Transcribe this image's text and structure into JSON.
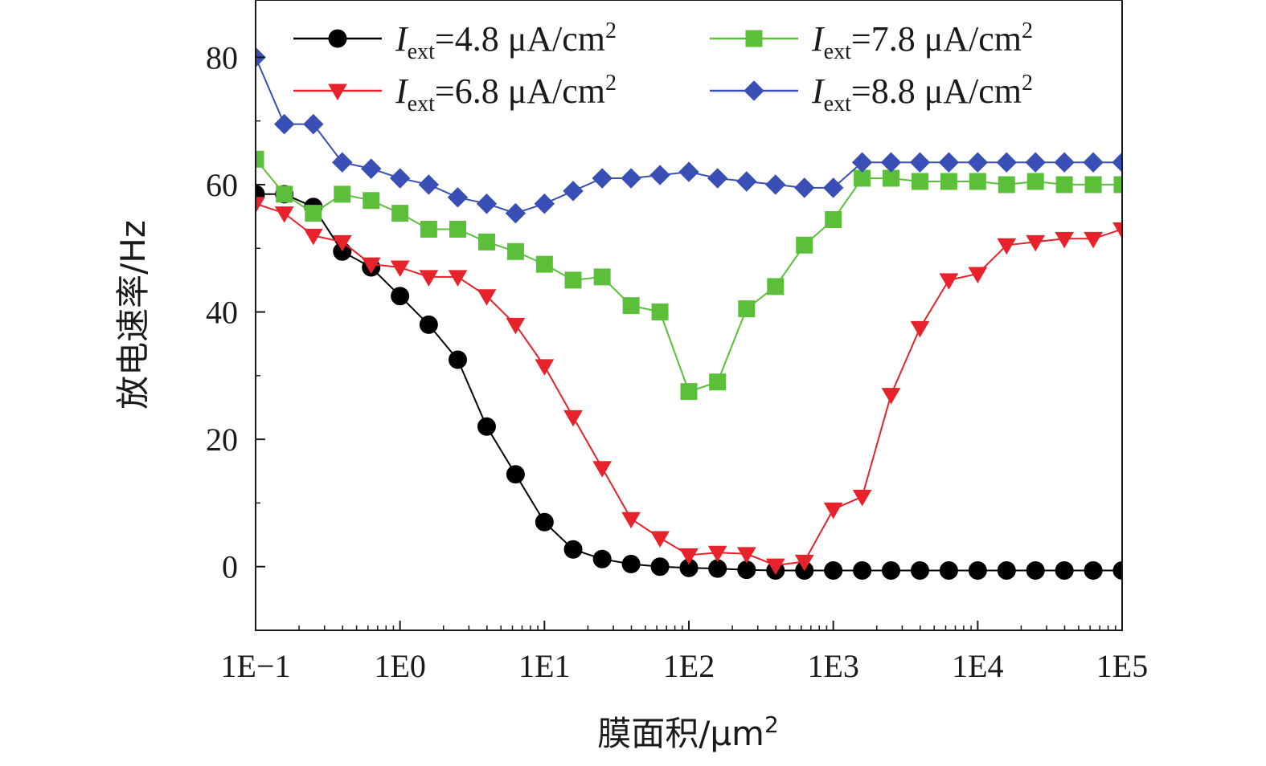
{
  "chart_data": {
    "type": "line",
    "xscale": "log",
    "x_tick_labels": [
      "1E−1",
      "1E0",
      "1E1",
      "1E2",
      "1E3",
      "1E4",
      "1E5"
    ],
    "y_tick_labels": [
      "0",
      "20",
      "40",
      "60",
      "80"
    ],
    "xlim": [
      0.1,
      100000
    ],
    "ylim": [
      -10,
      89
    ],
    "xlabel": "膜面积/μm",
    "xlabel_sup": "2",
    "ylabel": "放电速率/Hz",
    "legend_position": "top",
    "grid": false,
    "x": [
      0.1,
      0.158,
      0.251,
      0.398,
      0.631,
      1,
      1.58,
      2.51,
      3.98,
      6.31,
      10,
      15.8,
      25.1,
      39.8,
      63.1,
      100,
      158,
      251,
      398,
      631,
      1000,
      1585,
      2512,
      3981,
      6310,
      10000,
      15849,
      25119,
      39811,
      63096,
      100000
    ],
    "series": [
      {
        "name_main": "I",
        "name_sub": "ext",
        "name_rest": "=4.8 μA/cm",
        "name_sup": "2",
        "color": "#000000",
        "marker": "circle",
        "values": [
          58.5,
          58.5,
          56.5,
          49.5,
          47,
          42.5,
          38,
          32.5,
          22,
          14.5,
          7,
          2.7,
          1.2,
          0.4,
          0,
          -0.2,
          -0.3,
          -0.5,
          -0.6,
          -0.6,
          -0.6,
          -0.6,
          -0.6,
          -0.6,
          -0.6,
          -0.6,
          -0.6,
          -0.6,
          -0.6,
          -0.6,
          -0.6
        ]
      },
      {
        "name_main": "I",
        "name_sub": "ext",
        "name_rest": "=6.8 μA/cm",
        "name_sup": "2",
        "color": "#e8222b",
        "marker": "triangle-down",
        "values": [
          57,
          55.5,
          52,
          51,
          47.5,
          47,
          45.5,
          45.5,
          42.5,
          38,
          31.5,
          23.5,
          15.5,
          7.5,
          4.5,
          1.8,
          2.2,
          2,
          0.2,
          0.8,
          9,
          11,
          27,
          37.5,
          45,
          46,
          50.5,
          51,
          51.5,
          51.5,
          53
        ]
      },
      {
        "name_main": "I",
        "name_sub": "ext",
        "name_rest": "=7.8 μA/cm",
        "name_sup": "2",
        "color": "#5cbf3a",
        "marker": "square",
        "values": [
          64,
          58.5,
          55.5,
          58.5,
          57.5,
          55.5,
          53,
          53,
          51,
          49.5,
          47.5,
          45,
          45.5,
          41,
          40,
          27.5,
          29,
          40.5,
          44,
          50.5,
          54.5,
          61,
          61,
          60.5,
          60.5,
          60.5,
          60,
          60.5,
          60,
          60,
          60
        ]
      },
      {
        "name_main": "I",
        "name_sub": "ext",
        "name_rest": "=8.8 μA/cm",
        "name_sup": "2",
        "color": "#3a4fb5",
        "marker": "diamond",
        "values": [
          80,
          69.5,
          69.5,
          63.5,
          62.5,
          61,
          60,
          58,
          57,
          55.5,
          57,
          59,
          61,
          61,
          61.5,
          62,
          61,
          60.5,
          60,
          59.5,
          59.5,
          63.5,
          63.5,
          63.5,
          63.5,
          63.5,
          63.5,
          63.5,
          63.5,
          63.5,
          63.5
        ]
      }
    ]
  }
}
